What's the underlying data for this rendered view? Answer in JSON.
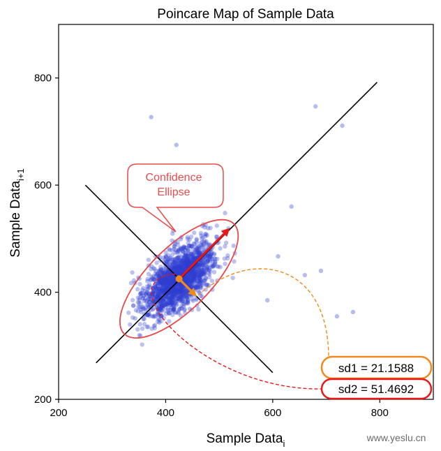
{
  "chart_data": {
    "type": "scatter",
    "title": "Poincare Map of Sample Data",
    "xlabel": {
      "main": "Sample Data",
      "sub": "i"
    },
    "ylabel": {
      "main": "Sample Data",
      "sub": "i+1"
    },
    "xlim": [
      200,
      900
    ],
    "ylim": [
      200,
      900
    ],
    "xticks": [
      200,
      400,
      600,
      800
    ],
    "yticks": [
      200,
      400,
      600,
      800
    ],
    "point_color": "#2e3fd0",
    "cluster": {
      "center": [
        425,
        425
      ],
      "sd_major": 42,
      "sd_minor": 21,
      "count": 1800
    },
    "outliers": [
      [
        373,
        727
      ],
      [
        420,
        675
      ],
      [
        680,
        747
      ],
      [
        730,
        711
      ],
      [
        635,
        560
      ],
      [
        750,
        363
      ],
      [
        720,
        355
      ],
      [
        690,
        440
      ],
      [
        610,
        467
      ],
      [
        660,
        432
      ],
      [
        590,
        385
      ]
    ],
    "identity_line": {
      "from": [
        270,
        268
      ],
      "to": [
        795,
        792
      ],
      "color": "#000000"
    },
    "perpendicular_line": {
      "from": [
        250,
        600
      ],
      "to": [
        600,
        250
      ],
      "color": "#000000"
    },
    "ellipse": {
      "center": [
        425,
        425
      ],
      "semi_axis_major": 145,
      "semi_axis_minor": 58,
      "color": "#e84a4a"
    },
    "sd1_arrow": {
      "from": [
        425,
        425
      ],
      "to": [
        458,
        392
      ],
      "color": "#f08a1c"
    },
    "sd2_arrow": {
      "from": [
        425,
        425
      ],
      "to": [
        520,
        520
      ],
      "color": "#e81818"
    },
    "center_marker_color": "#f08a1c",
    "callout": {
      "line1": "Confidence",
      "line2": "Ellipse",
      "color": "#e84a4a"
    },
    "stats": [
      {
        "label": "sd1 = 21.1588",
        "color": "#f08a1c"
      },
      {
        "label": "sd2 = 51.4692",
        "color": "#e81818"
      }
    ]
  },
  "watermark": "www.yeslu.cn"
}
